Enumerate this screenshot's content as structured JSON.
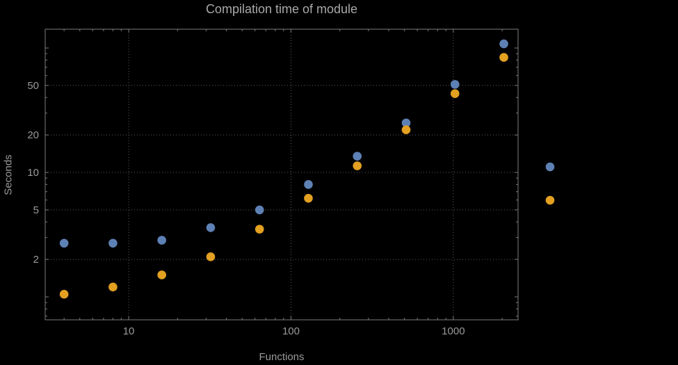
{
  "chart_data": {
    "type": "scatter",
    "title": "Compilation time of module",
    "xlabel": "Functions",
    "ylabel": "Seconds",
    "x_scale": "log",
    "y_scale": "log",
    "x_ticks": [
      10,
      100,
      1000
    ],
    "y_ticks": [
      2,
      5,
      10,
      20,
      50
    ],
    "xlim": [
      3.06,
      2506
    ],
    "ylim": [
      0.654,
      141.6
    ],
    "x": [
      4,
      8,
      16,
      32,
      64,
      128,
      256,
      512,
      1024,
      2048
    ],
    "series": [
      {
        "name": "series-blue",
        "color": "#5e81b5",
        "values": [
          2.7,
          2.7,
          2.85,
          3.6,
          5.0,
          8.0,
          13.5,
          25,
          51,
          108
        ]
      },
      {
        "name": "series-orange",
        "color": "#e3a021",
        "values": [
          1.05,
          1.2,
          1.5,
          2.1,
          3.5,
          6.2,
          11.3,
          22,
          43,
          84
        ]
      }
    ],
    "legend": {
      "position": "right",
      "markers": [
        {
          "name": "legend-marker-blue",
          "color": "#5e81b5"
        },
        {
          "name": "legend-marker-orange",
          "color": "#e3a021"
        }
      ]
    },
    "grid": {
      "visible": true,
      "style": "dotted",
      "color": "#5e5e5e"
    },
    "frame_color": "#7d7d7d",
    "tick_label_color": "#9a9a9a",
    "background": "#000000"
  }
}
